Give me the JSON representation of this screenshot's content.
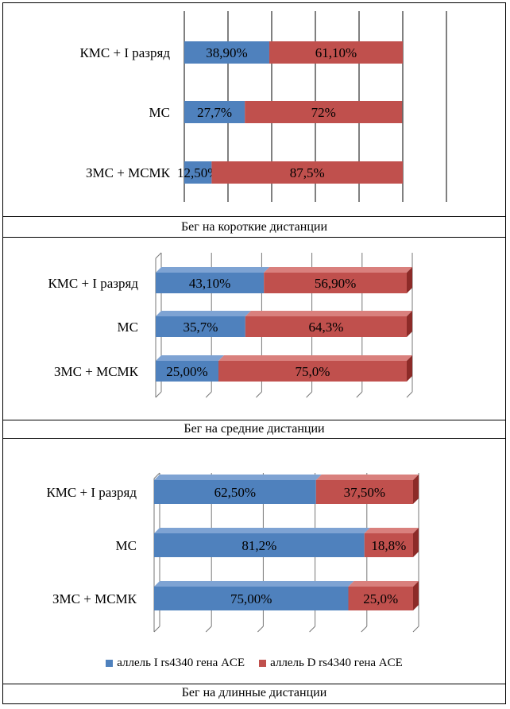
{
  "colors": {
    "allele_I": "#4f81bd",
    "allele_I_top": "#7ea3d3",
    "allele_I_side": "#2f5a8e",
    "allele_D": "#c0504d",
    "allele_D_top": "#d9807d",
    "allele_D_side": "#8c2b28"
  },
  "legend": {
    "allele_I": "аллель I rs4340 гена ACE",
    "allele_D": "аллель D rs4340 гена ACE"
  },
  "chart_data": [
    {
      "type": "bar",
      "orientation": "horizontal",
      "stacked": "100%",
      "style": "flat",
      "title": "Бег на короткие дистанции",
      "categories": [
        "КМС + I разряд",
        "МС",
        "ЗМС + МСМК"
      ],
      "series": [
        {
          "name": "аллель I rs4340 гена ACE",
          "values": [
            38.9,
            27.7,
            12.5
          ],
          "labels": [
            "38,90%",
            "27,7%",
            "12,50%"
          ]
        },
        {
          "name": "аллель D rs4340 гена ACE",
          "values": [
            61.1,
            72,
            87.5
          ],
          "labels": [
            "61,10%",
            "72%",
            "87,5%"
          ]
        }
      ],
      "xlim": [
        0,
        120
      ],
      "grid": true
    },
    {
      "type": "bar",
      "orientation": "horizontal",
      "stacked": "100%",
      "style": "3d",
      "title": "Бег на средние дистанции",
      "categories": [
        "КМС + I разряд",
        "МС",
        "ЗМС + МСМК"
      ],
      "series": [
        {
          "name": "аллель I rs4340 гена ACE",
          "values": [
            43.1,
            35.7,
            25.0
          ],
          "labels": [
            "43,10%",
            "35,7%",
            "25,00%"
          ]
        },
        {
          "name": "аллель D rs4340 гена ACE",
          "values": [
            56.9,
            64.3,
            75.0
          ],
          "labels": [
            "56,90%",
            "64,3%",
            "75,0%"
          ]
        }
      ],
      "xlim": [
        0,
        100
      ],
      "grid": true
    },
    {
      "type": "bar",
      "orientation": "horizontal",
      "stacked": "100%",
      "style": "3d",
      "title": "Бег на длинные дистанции",
      "categories": [
        "КМС + I разряд",
        "МС",
        "ЗМС + МСМК"
      ],
      "series": [
        {
          "name": "аллель I rs4340 гена ACE",
          "values": [
            62.5,
            81.2,
            75.0
          ],
          "labels": [
            "62,50%",
            "81,2%",
            "75,00%"
          ]
        },
        {
          "name": "аллель D rs4340 гена ACE",
          "values": [
            37.5,
            18.8,
            25.0
          ],
          "labels": [
            "37,50%",
            "18,8%",
            "25,0%"
          ]
        }
      ],
      "xlim": [
        0,
        100
      ],
      "grid": true,
      "legend": "bottom"
    }
  ]
}
